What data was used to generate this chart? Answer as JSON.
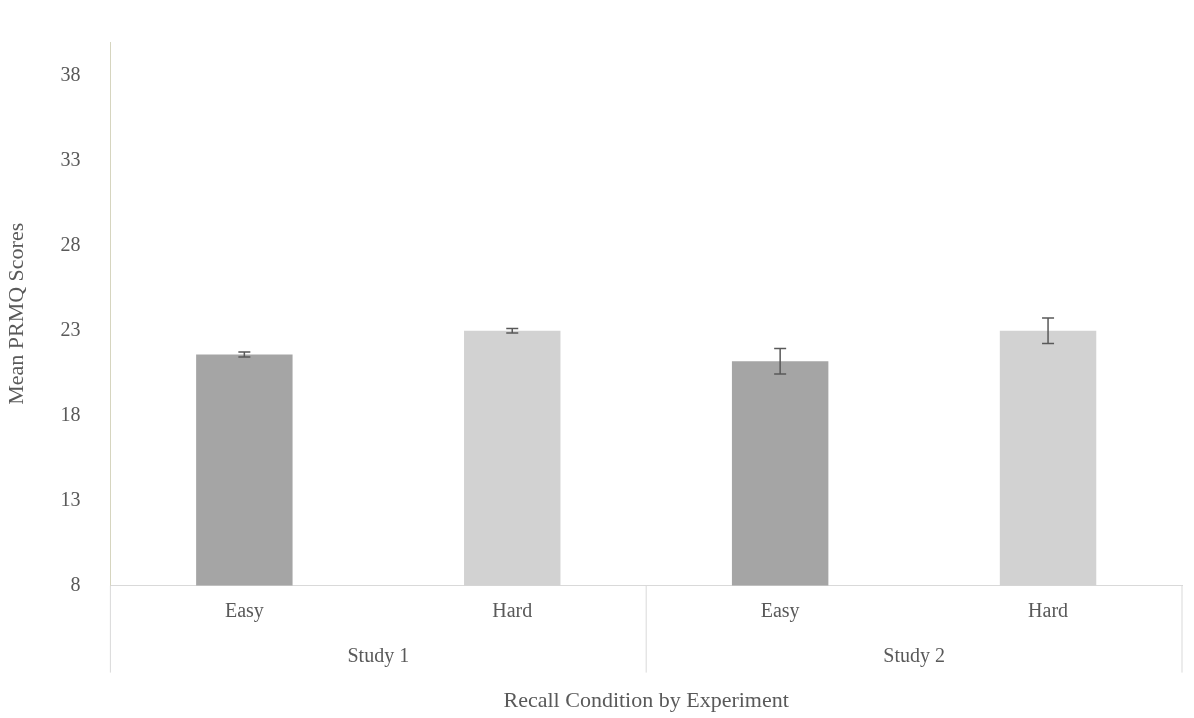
{
  "chart_data": {
    "type": "bar",
    "xlabel": "Recall Condition by Experiment",
    "ylabel": "Mean PRMQ Scores",
    "categories": [
      "Easy",
      "Hard",
      "Easy",
      "Hard"
    ],
    "values": [
      21.6,
      23.0,
      21.2,
      23.0
    ],
    "errors": [
      0.15,
      0.13,
      0.75,
      0.75
    ],
    "colors": [
      "#a5a5a5",
      "#d2d2d2",
      "#a5a5a5",
      "#d2d2d2"
    ],
    "ylim": [
      8,
      40
    ],
    "yticks": [
      8,
      13,
      18,
      23,
      28,
      33,
      38
    ],
    "annotations": [
      "Study 1",
      "Study 2"
    ],
    "grid": false,
    "legend": false
  }
}
